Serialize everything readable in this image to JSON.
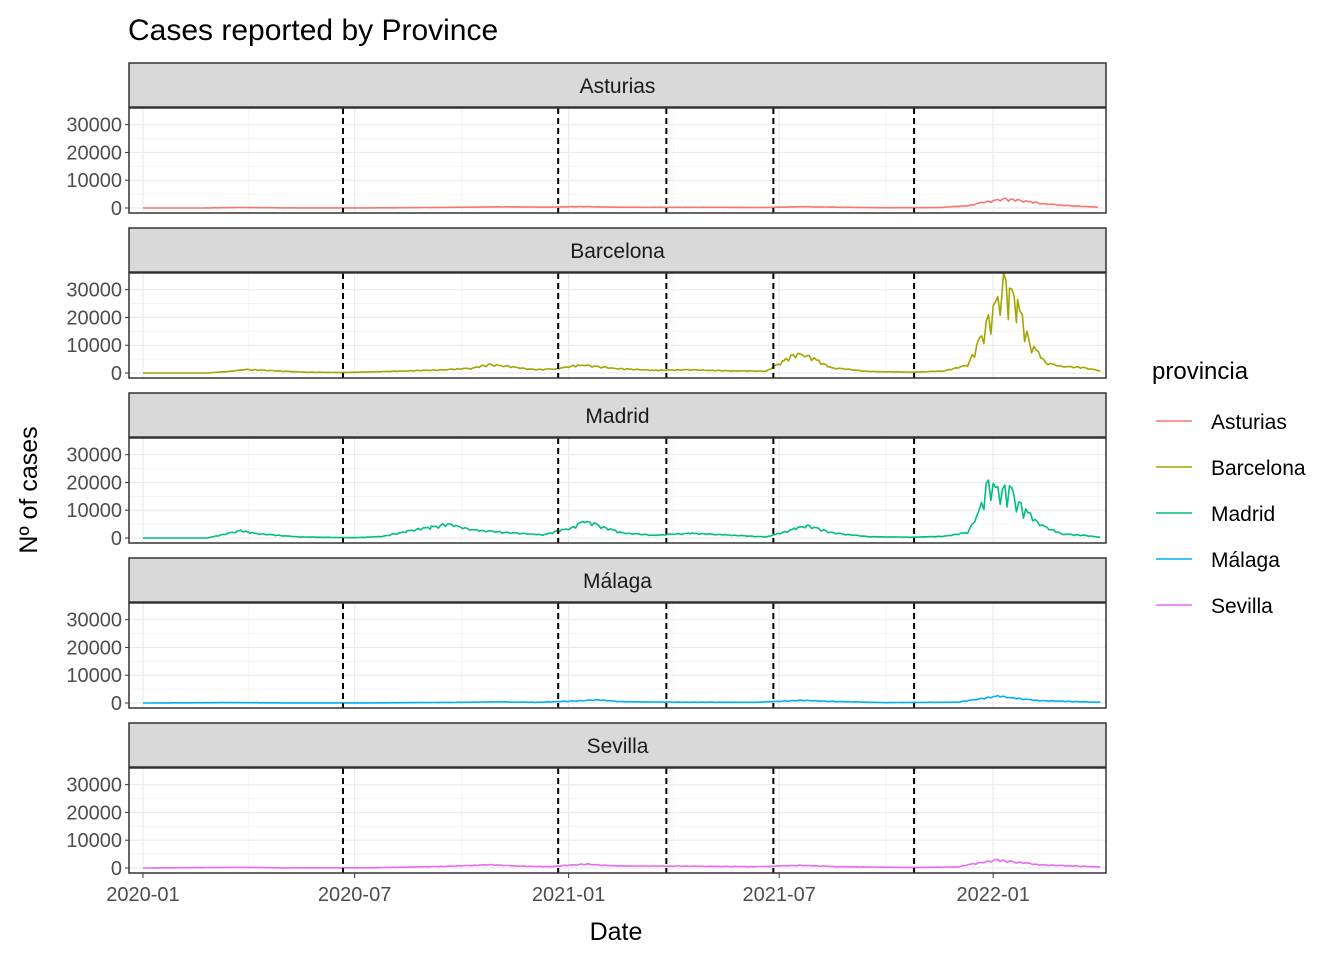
{
  "chart_data": {
    "type": "line",
    "title": "Cases reported by Province",
    "xlabel": "Date",
    "ylabel": "Nº of cases",
    "facet_by": "provincia",
    "x_range": [
      "2019-12-20",
      "2022-04-08"
    ],
    "ylim": [
      -1800,
      36000
    ],
    "x_ticks": [
      "2020-01",
      "2020-07",
      "2021-01",
      "2021-07",
      "2022-01"
    ],
    "x_tick_dates": [
      "2020-01-01",
      "2020-07-01",
      "2021-01-01",
      "2021-07-01",
      "2022-01-01"
    ],
    "y_ticks": [
      0,
      10000,
      20000,
      30000
    ],
    "y_tick_labels": [
      "0",
      "10000",
      "20000",
      "30000"
    ],
    "grid": true,
    "vlines": [
      "2020-06-21",
      "2020-12-23",
      "2021-03-26",
      "2021-06-26",
      "2021-10-25"
    ],
    "legend": {
      "title": "provincia",
      "position": "right",
      "entries": [
        "Asturias",
        "Barcelona",
        "Madrid",
        "Málaga",
        "Sevilla"
      ]
    },
    "series": [
      {
        "name": "Asturias",
        "color": "#F8766D",
        "points": [
          [
            "2020-01-01",
            0
          ],
          [
            "2020-02-20",
            0
          ],
          [
            "2020-03-25",
            200
          ],
          [
            "2020-05-01",
            60
          ],
          [
            "2020-07-01",
            20
          ],
          [
            "2020-08-15",
            120
          ],
          [
            "2020-10-01",
            300
          ],
          [
            "2020-11-10",
            450
          ],
          [
            "2020-12-15",
            300
          ],
          [
            "2021-01-10",
            550
          ],
          [
            "2021-02-10",
            300
          ],
          [
            "2021-04-01",
            250
          ],
          [
            "2021-05-10",
            250
          ],
          [
            "2021-06-20",
            200
          ],
          [
            "2021-07-20",
            500
          ],
          [
            "2021-08-20",
            300
          ],
          [
            "2021-10-01",
            100
          ],
          [
            "2021-11-15",
            150
          ],
          [
            "2021-12-10",
            900
          ],
          [
            "2021-12-28",
            2500
          ],
          [
            "2022-01-10",
            3400
          ],
          [
            "2022-01-25",
            2800
          ],
          [
            "2022-02-15",
            1500
          ],
          [
            "2022-03-10",
            800
          ],
          [
            "2022-03-25",
            500
          ],
          [
            "2022-04-01",
            300
          ]
        ]
      },
      {
        "name": "Barcelona",
        "color": "#A3A500",
        "points": [
          [
            "2020-01-01",
            0
          ],
          [
            "2020-02-25",
            0
          ],
          [
            "2020-03-15",
            600
          ],
          [
            "2020-03-30",
            1300
          ],
          [
            "2020-04-20",
            900
          ],
          [
            "2020-05-20",
            300
          ],
          [
            "2020-06-20",
            200
          ],
          [
            "2020-07-15",
            400
          ],
          [
            "2020-08-15",
            800
          ],
          [
            "2020-09-15",
            1200
          ],
          [
            "2020-10-10",
            1800
          ],
          [
            "2020-10-25",
            3200
          ],
          [
            "2020-11-10",
            2500
          ],
          [
            "2020-11-30",
            1300
          ],
          [
            "2020-12-20",
            1500
          ],
          [
            "2021-01-05",
            2600
          ],
          [
            "2021-01-15",
            3000
          ],
          [
            "2021-02-10",
            1700
          ],
          [
            "2021-03-15",
            1000
          ],
          [
            "2021-04-15",
            1200
          ],
          [
            "2021-05-20",
            800
          ],
          [
            "2021-06-20",
            700
          ],
          [
            "2021-07-05",
            4500
          ],
          [
            "2021-07-15",
            7000
          ],
          [
            "2021-07-25",
            6500
          ],
          [
            "2021-08-15",
            2000
          ],
          [
            "2021-09-15",
            600
          ],
          [
            "2021-10-25",
            300
          ],
          [
            "2021-11-20",
            800
          ],
          [
            "2021-12-10",
            3000
          ],
          [
            "2021-12-20",
            12000
          ],
          [
            "2021-12-28",
            20000
          ],
          [
            "2022-01-05",
            28000
          ],
          [
            "2022-01-10",
            34000
          ],
          [
            "2022-01-15",
            30000
          ],
          [
            "2022-01-22",
            26000
          ],
          [
            "2022-02-01",
            12000
          ],
          [
            "2022-02-15",
            4000
          ],
          [
            "2022-03-01",
            2500
          ],
          [
            "2022-03-20",
            2000
          ],
          [
            "2022-04-03",
            800
          ]
        ]
      },
      {
        "name": "Madrid",
        "color": "#00BF7D",
        "points": [
          [
            "2020-01-01",
            0
          ],
          [
            "2020-02-25",
            0
          ],
          [
            "2020-03-12",
            1500
          ],
          [
            "2020-03-25",
            2800
          ],
          [
            "2020-04-10",
            1500
          ],
          [
            "2020-05-15",
            400
          ],
          [
            "2020-06-30",
            100
          ],
          [
            "2020-07-25",
            600
          ],
          [
            "2020-08-15",
            2500
          ],
          [
            "2020-09-05",
            4200
          ],
          [
            "2020-09-20",
            5200
          ],
          [
            "2020-10-10",
            3000
          ],
          [
            "2020-11-10",
            2000
          ],
          [
            "2020-12-10",
            1200
          ],
          [
            "2021-01-05",
            4000
          ],
          [
            "2021-01-15",
            6500
          ],
          [
            "2021-01-25",
            5000
          ],
          [
            "2021-02-15",
            2000
          ],
          [
            "2021-03-15",
            1000
          ],
          [
            "2021-04-15",
            1800
          ],
          [
            "2021-05-15",
            1200
          ],
          [
            "2021-06-20",
            400
          ],
          [
            "2021-07-15",
            3500
          ],
          [
            "2021-07-25",
            4800
          ],
          [
            "2021-08-15",
            2000
          ],
          [
            "2021-09-15",
            500
          ],
          [
            "2021-10-25",
            300
          ],
          [
            "2021-11-20",
            700
          ],
          [
            "2021-12-10",
            2000
          ],
          [
            "2021-12-20",
            10000
          ],
          [
            "2021-12-28",
            22000
          ],
          [
            "2022-01-05",
            18000
          ],
          [
            "2022-01-15",
            19000
          ],
          [
            "2022-01-25",
            12000
          ],
          [
            "2022-02-10",
            5000
          ],
          [
            "2022-03-01",
            1500
          ],
          [
            "2022-03-20",
            1000
          ],
          [
            "2022-04-03",
            300
          ]
        ]
      },
      {
        "name": "Málaga",
        "color": "#00B0F6",
        "points": [
          [
            "2020-01-01",
            0
          ],
          [
            "2020-03-15",
            150
          ],
          [
            "2020-05-01",
            50
          ],
          [
            "2020-07-15",
            50
          ],
          [
            "2020-10-01",
            250
          ],
          [
            "2020-11-01",
            450
          ],
          [
            "2020-12-05",
            250
          ],
          [
            "2021-01-10",
            800
          ],
          [
            "2021-01-25",
            1200
          ],
          [
            "2021-02-15",
            500
          ],
          [
            "2021-04-01",
            300
          ],
          [
            "2021-06-10",
            250
          ],
          [
            "2021-07-20",
            1000
          ],
          [
            "2021-08-15",
            600
          ],
          [
            "2021-10-01",
            150
          ],
          [
            "2021-12-01",
            300
          ],
          [
            "2021-12-20",
            1500
          ],
          [
            "2022-01-05",
            2600
          ],
          [
            "2022-01-15",
            2000
          ],
          [
            "2022-02-10",
            900
          ],
          [
            "2022-03-15",
            500
          ],
          [
            "2022-04-03",
            300
          ]
        ]
      },
      {
        "name": "Sevilla",
        "color": "#E76BF3",
        "points": [
          [
            "2020-01-01",
            0
          ],
          [
            "2020-03-25",
            250
          ],
          [
            "2020-05-01",
            50
          ],
          [
            "2020-07-15",
            80
          ],
          [
            "2020-09-15",
            600
          ],
          [
            "2020-10-25",
            1200
          ],
          [
            "2020-11-20",
            700
          ],
          [
            "2020-12-15",
            500
          ],
          [
            "2021-01-15",
            1500
          ],
          [
            "2021-02-10",
            800
          ],
          [
            "2021-04-01",
            700
          ],
          [
            "2021-06-10",
            500
          ],
          [
            "2021-07-20",
            1000
          ],
          [
            "2021-08-20",
            500
          ],
          [
            "2021-10-25",
            200
          ],
          [
            "2021-12-01",
            400
          ],
          [
            "2021-12-20",
            2000
          ],
          [
            "2022-01-05",
            3000
          ],
          [
            "2022-01-15",
            2500
          ],
          [
            "2022-02-10",
            1200
          ],
          [
            "2022-03-15",
            700
          ],
          [
            "2022-04-03",
            400
          ]
        ]
      }
    ]
  }
}
